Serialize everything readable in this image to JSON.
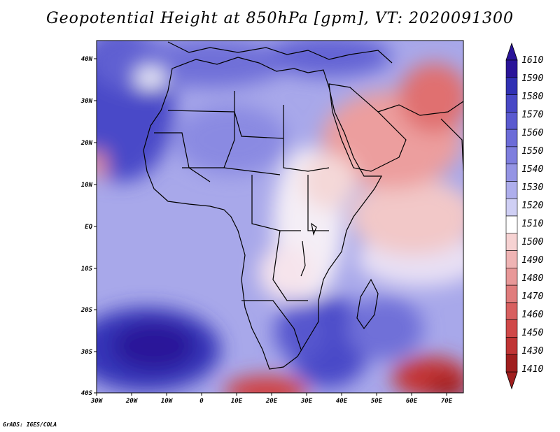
{
  "title": "Geopotential Height at 850hPa [gpm], VT: 2020091300",
  "credit": "GrADS: IGES/COLA",
  "map": {
    "variable": "Geopotential Height",
    "level": "850hPa",
    "units": "gpm",
    "valid_time": "2020091300",
    "lon_range": [
      -30,
      75
    ],
    "lat_range": [
      -40,
      45
    ],
    "x_ticks": [
      "30W",
      "20W",
      "10W",
      "0",
      "10E",
      "20E",
      "30E",
      "40E",
      "50E",
      "60E",
      "70E"
    ],
    "y_ticks": [
      "40N",
      "30N",
      "20N",
      "10N",
      "EQ",
      "10S",
      "20S",
      "30S",
      "40S"
    ]
  },
  "colorbar": {
    "labels": [
      "1610",
      "1590",
      "1580",
      "1570",
      "1560",
      "1550",
      "1540",
      "1530",
      "1520",
      "1510",
      "1500",
      "1490",
      "1480",
      "1470",
      "1460",
      "1450",
      "1430",
      "1410"
    ],
    "colors": [
      "#2a1499",
      "#3030b4",
      "#4848c6",
      "#5a5ad0",
      "#6c6cd8",
      "#7e7ede",
      "#9494e4",
      "#aeaeec",
      "#cfcff4",
      "#ffffff",
      "#f6d2d2",
      "#efb4b4",
      "#e89898",
      "#e07c7c",
      "#d86060",
      "#d04848",
      "#c03434",
      "#a01e1e"
    ]
  }
}
